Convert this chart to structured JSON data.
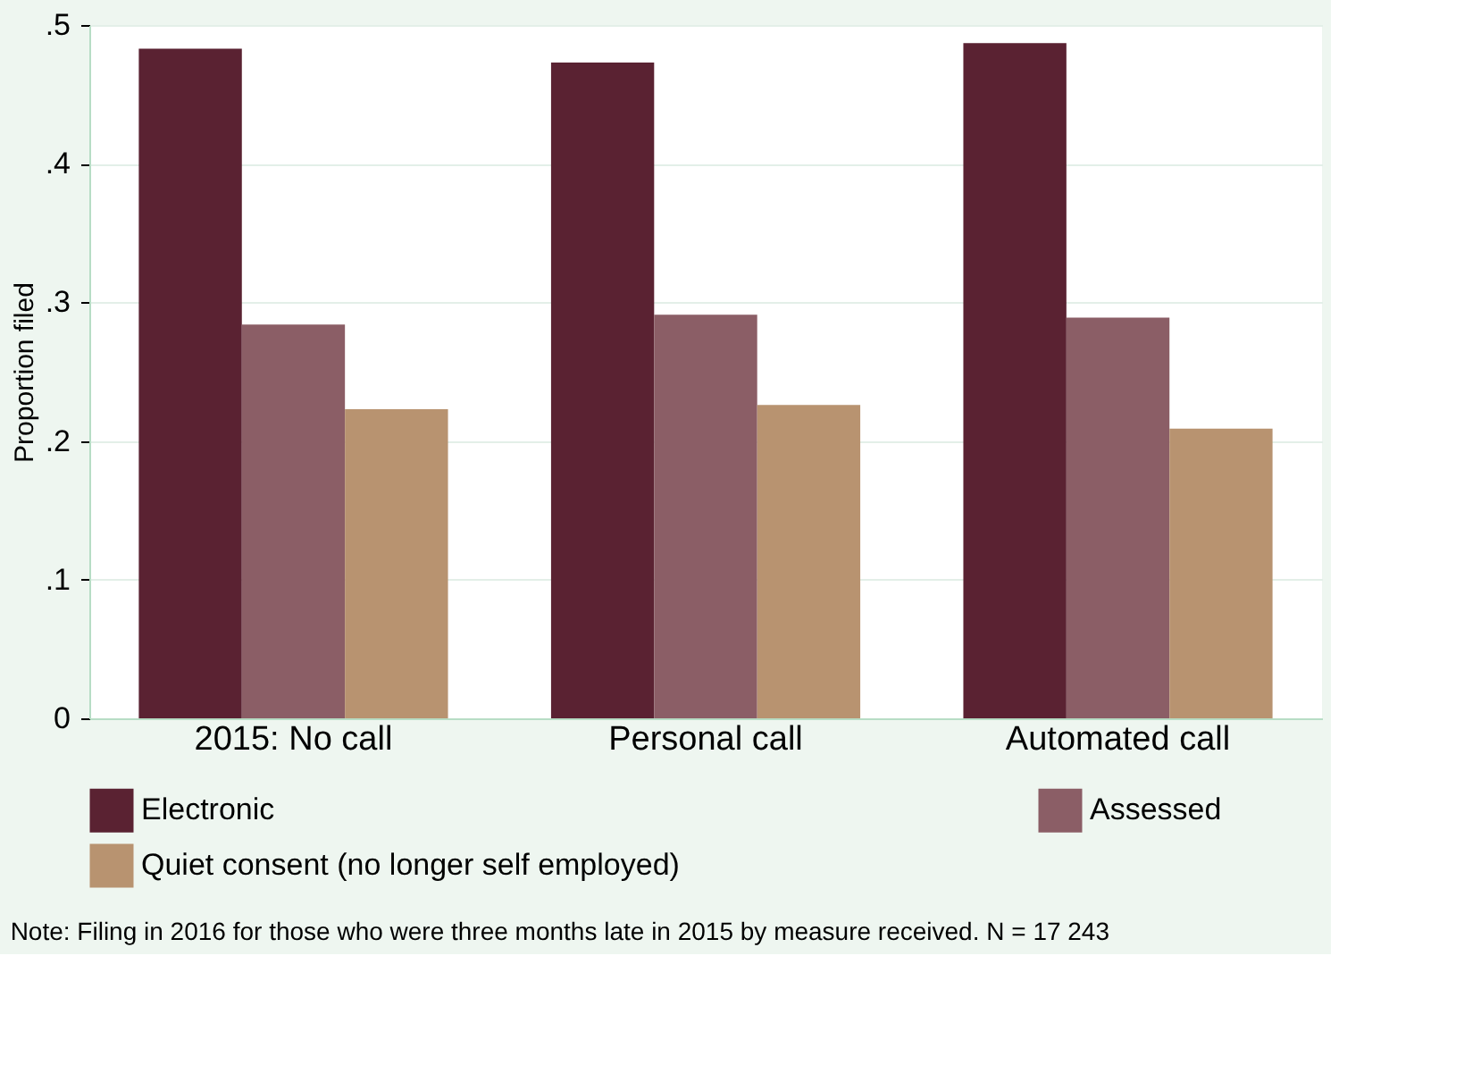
{
  "chart_data": {
    "type": "bar",
    "ylabel": "Proportion filed",
    "categories": [
      "2015:  No call",
      "Personal call",
      "Automated call"
    ],
    "series": [
      {
        "name": "Electronic",
        "color": "#5a2232",
        "values": [
          0.483,
          0.473,
          0.487
        ]
      },
      {
        "name": "Assessed",
        "color": "#8b5e66",
        "values": [
          0.284,
          0.291,
          0.289
        ]
      },
      {
        "name": "Quiet consent (no longer self employed)",
        "color": "#b89370",
        "values": [
          0.223,
          0.226,
          0.209
        ]
      }
    ],
    "ylim": [
      0,
      0.5
    ],
    "yticks": [
      {
        "value": 0,
        "label": "0"
      },
      {
        "value": 0.1,
        "label": ".1"
      },
      {
        "value": 0.2,
        "label": ".2"
      },
      {
        "value": 0.3,
        "label": ".3"
      },
      {
        "value": 0.4,
        "label": ".4"
      },
      {
        "value": 0.5,
        "label": ".5"
      }
    ],
    "grid": "y",
    "legend": "bottom",
    "annotations": [
      "Note: Filing in 2016 for those who were three months late in 2015 by measure received. N = 17 243"
    ]
  }
}
